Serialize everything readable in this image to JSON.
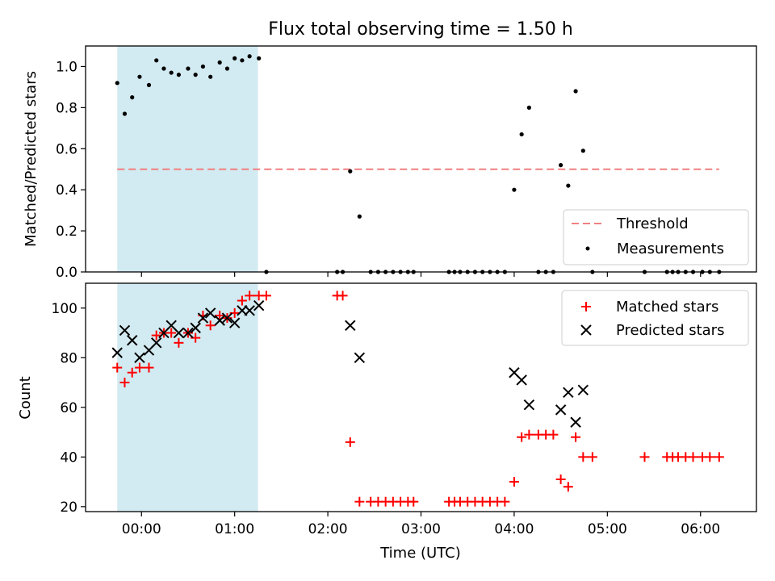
{
  "chart_data": {
    "title": "Flux total observing time = 1.50 h",
    "xlabel": "Time (UTC)",
    "x_units": "hours since 00:00 UTC",
    "xlim": [
      -0.6,
      6.6
    ],
    "x_ticks": [
      {
        "value": 0,
        "label": "00:00"
      },
      {
        "value": 1,
        "label": "01:00"
      },
      {
        "value": 2,
        "label": "02:00"
      },
      {
        "value": 3,
        "label": "03:00"
      },
      {
        "value": 4,
        "label": "04:00"
      },
      {
        "value": 5,
        "label": "05:00"
      },
      {
        "value": 6,
        "label": "06:00"
      }
    ],
    "shaded_span": [
      -0.26,
      1.25
    ],
    "shade_color": "#add8e6",
    "top": {
      "type": "scatter",
      "ylabel": "Matched/Predicted stars",
      "ylim": [
        0,
        1.1
      ],
      "y_ticks": [
        {
          "value": 0,
          "label": "0.0"
        },
        {
          "value": 0.2,
          "label": "0.2"
        },
        {
          "value": 0.4,
          "label": "0.4"
        },
        {
          "value": 0.6,
          "label": "0.6"
        },
        {
          "value": 0.8,
          "label": "0.8"
        },
        {
          "value": 1.0,
          "label": "1.0"
        }
      ],
      "threshold": {
        "value": 0.5,
        "x_range": [
          -0.26,
          6.2
        ],
        "label": "Threshold",
        "color": "#f08080"
      },
      "measurements": {
        "label": "Measurements",
        "color": "#000000",
        "x": [
          -0.26,
          -0.18,
          -0.1,
          -0.02,
          0.08,
          0.16,
          0.24,
          0.32,
          0.4,
          0.5,
          0.58,
          0.66,
          0.74,
          0.84,
          0.92,
          1.0,
          1.08,
          1.16,
          1.26,
          1.34,
          2.1,
          2.16,
          2.24,
          2.34,
          2.46,
          2.54,
          2.62,
          2.7,
          2.78,
          2.86,
          2.92,
          3.3,
          3.36,
          3.42,
          3.5,
          3.58,
          3.66,
          3.74,
          3.82,
          3.9,
          4.0,
          4.08,
          4.16,
          4.26,
          4.34,
          4.42,
          4.5,
          4.58,
          4.66,
          4.74,
          4.84,
          5.4,
          5.64,
          5.7,
          5.76,
          5.84,
          5.92,
          6.02,
          6.1,
          6.2
        ],
        "y": [
          0.92,
          0.77,
          0.85,
          0.95,
          0.91,
          1.03,
          0.99,
          0.97,
          0.96,
          0.99,
          0.96,
          1.0,
          0.95,
          1.02,
          0.99,
          1.04,
          1.03,
          1.05,
          1.04,
          0.0,
          0.0,
          0.0,
          0.49,
          0.27,
          0.0,
          0.0,
          0.0,
          0.0,
          0.0,
          0.0,
          0.0,
          0.0,
          0.0,
          0.0,
          0.0,
          0.0,
          0.0,
          0.0,
          0.0,
          0.0,
          0.4,
          0.67,
          0.8,
          0.0,
          0.0,
          0.0,
          0.52,
          0.42,
          0.88,
          0.59,
          0.0,
          0.0,
          0.0,
          0.0,
          0.0,
          0.0,
          0.0,
          0.0,
          0.0,
          0.0
        ]
      }
    },
    "bottom": {
      "type": "scatter",
      "ylabel": "Count",
      "ylim": [
        18,
        110
      ],
      "y_ticks": [
        {
          "value": 20,
          "label": "20"
        },
        {
          "value": 40,
          "label": "40"
        },
        {
          "value": 60,
          "label": "60"
        },
        {
          "value": 80,
          "label": "80"
        },
        {
          "value": 100,
          "label": "100"
        }
      ],
      "series": [
        {
          "name": "Matched stars",
          "marker": "plus",
          "color": "#ff0000",
          "x": [
            -0.26,
            -0.18,
            -0.1,
            -0.02,
            0.08,
            0.16,
            0.24,
            0.32,
            0.4,
            0.5,
            0.58,
            0.66,
            0.74,
            0.84,
            0.92,
            1.0,
            1.08,
            1.16,
            1.26,
            1.34,
            2.1,
            2.16,
            2.24,
            2.34,
            2.46,
            2.54,
            2.62,
            2.7,
            2.78,
            2.86,
            2.92,
            3.3,
            3.36,
            3.42,
            3.5,
            3.58,
            3.66,
            3.74,
            3.82,
            3.9,
            4.0,
            4.08,
            4.16,
            4.26,
            4.34,
            4.42,
            4.5,
            4.58,
            4.66,
            4.74,
            4.84,
            5.4,
            5.64,
            5.7,
            5.76,
            5.84,
            5.92,
            6.02,
            6.1,
            6.2
          ],
          "y": [
            76,
            70,
            74,
            76,
            76,
            89,
            90,
            90,
            86,
            90,
            88,
            97,
            93,
            97,
            96,
            98,
            103,
            105,
            105,
            105,
            105,
            105,
            46,
            22,
            22,
            22,
            22,
            22,
            22,
            22,
            22,
            22,
            22,
            22,
            22,
            22,
            22,
            22,
            22,
            22,
            30,
            48,
            49,
            49,
            49,
            49,
            31,
            28,
            48,
            40,
            40,
            40,
            40,
            40,
            40,
            40,
            40,
            40,
            40,
            40
          ]
        },
        {
          "name": "Predicted stars",
          "marker": "x",
          "color": "#000000",
          "x": [
            -0.26,
            -0.18,
            -0.1,
            -0.02,
            0.08,
            0.16,
            0.24,
            0.32,
            0.4,
            0.5,
            0.58,
            0.66,
            0.74,
            0.84,
            0.92,
            1.0,
            1.08,
            1.16,
            1.26,
            2.24,
            2.34,
            4.0,
            4.08,
            4.16,
            4.5,
            4.58,
            4.66,
            4.74
          ],
          "y": [
            82,
            91,
            87,
            80,
            83,
            86,
            90,
            93,
            90,
            90,
            92,
            96,
            98,
            95,
            96,
            94,
            99,
            99,
            101,
            93,
            80,
            74,
            71,
            61,
            59,
            66,
            54,
            67
          ]
        }
      ]
    }
  }
}
